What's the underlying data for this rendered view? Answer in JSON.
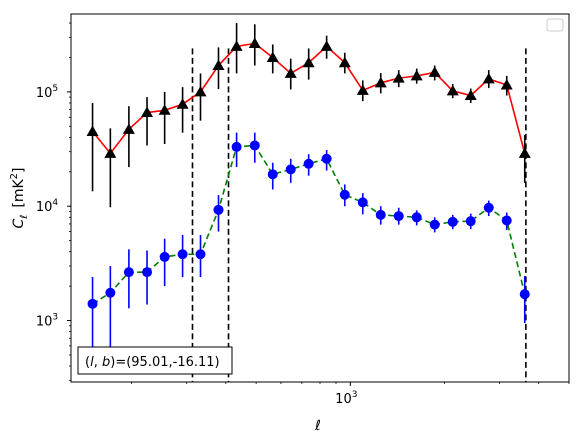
{
  "chart_data": {
    "type": "line",
    "xlabel": "ℓ",
    "ylabel_main": "C",
    "ylabel_sub": "ℓ",
    "ylabel_unit": "[mK",
    "ylabel_unit_sup": "2",
    "ylabel_unit_close": "]",
    "xscale": "log",
    "yscale": "log",
    "xlim": [
      128,
      5000
    ],
    "ylim": [
      290,
      480000
    ],
    "x_tick_labels": [
      {
        "value": 1000,
        "base": "10",
        "exp": "3"
      }
    ],
    "y_tick_labels": [
      {
        "value": 1000,
        "base": "10",
        "exp": "3"
      },
      {
        "value": 10000,
        "base": "10",
        "exp": "4"
      },
      {
        "value": 100000,
        "base": "10",
        "exp": "5"
      }
    ],
    "annotation": "(l, b)=(95.01,-16.11)",
    "annotation_parts": {
      "open": "(",
      "l": "l",
      "sep": ", ",
      "b": "b",
      "close": ")",
      "eq": "=(95.01,-16.11)"
    },
    "legend": "top-right (empty)",
    "vlines": [
      313,
      408,
      3640
    ],
    "series": [
      {
        "color": "#ff0000",
        "line_style": "solid",
        "marker": "triangle",
        "marker_color": "#000000",
        "errorbar_color": "#000000",
        "points": [
          {
            "x": 150,
            "y": 45000,
            "lo": 13500,
            "hi": 80000
          },
          {
            "x": 171,
            "y": 29000,
            "lo": 9800,
            "hi": 48000
          },
          {
            "x": 196,
            "y": 47000,
            "lo": 22000,
            "hi": 75000
          },
          {
            "x": 224,
            "y": 66000,
            "lo": 34000,
            "hi": 90000
          },
          {
            "x": 255,
            "y": 69000,
            "lo": 35000,
            "hi": 100000
          },
          {
            "x": 291,
            "y": 78000,
            "lo": 44000,
            "hi": 110000
          },
          {
            "x": 332,
            "y": 100000,
            "lo": 56000,
            "hi": 145000
          },
          {
            "x": 379,
            "y": 170000,
            "lo": 106000,
            "hi": 245000
          },
          {
            "x": 433,
            "y": 250000,
            "lo": 145000,
            "hi": 400000
          },
          {
            "x": 495,
            "y": 265000,
            "lo": 170000,
            "hi": 390000
          },
          {
            "x": 565,
            "y": 200000,
            "lo": 145000,
            "hi": 260000
          },
          {
            "x": 645,
            "y": 145000,
            "lo": 105000,
            "hi": 195000
          },
          {
            "x": 736,
            "y": 180000,
            "lo": 128000,
            "hi": 240000
          },
          {
            "x": 840,
            "y": 250000,
            "lo": 195000,
            "hi": 310000
          },
          {
            "x": 960,
            "y": 180000,
            "lo": 145000,
            "hi": 220000
          },
          {
            "x": 1096,
            "y": 103000,
            "lo": 83000,
            "hi": 126000
          },
          {
            "x": 1251,
            "y": 120000,
            "lo": 97000,
            "hi": 146000
          },
          {
            "x": 1428,
            "y": 132000,
            "lo": 110000,
            "hi": 155000
          },
          {
            "x": 1630,
            "y": 138000,
            "lo": 118000,
            "hi": 160000
          },
          {
            "x": 1861,
            "y": 148000,
            "lo": 126000,
            "hi": 170000
          },
          {
            "x": 2125,
            "y": 102000,
            "lo": 88000,
            "hi": 117000
          },
          {
            "x": 2426,
            "y": 93000,
            "lo": 80000,
            "hi": 107000
          },
          {
            "x": 2770,
            "y": 130000,
            "lo": 108000,
            "hi": 155000
          },
          {
            "x": 3162,
            "y": 115000,
            "lo": 93000,
            "hi": 138000
          },
          {
            "x": 3610,
            "y": 29000,
            "lo": 16000,
            "hi": 42000
          }
        ]
      },
      {
        "color": "#008000",
        "line_style": "dashed",
        "marker": "circle",
        "marker_color": "#0000ff",
        "errorbar_color": "#0000ff",
        "points": [
          {
            "x": 150,
            "y": 1400,
            "lo": 500,
            "hi": 2400
          },
          {
            "x": 171,
            "y": 1750,
            "lo": 560,
            "hi": 3000
          },
          {
            "x": 196,
            "y": 2650,
            "lo": 1280,
            "hi": 4200
          },
          {
            "x": 224,
            "y": 2650,
            "lo": 1380,
            "hi": 4100
          },
          {
            "x": 255,
            "y": 3600,
            "lo": 2000,
            "hi": 5200
          },
          {
            "x": 291,
            "y": 3800,
            "lo": 2400,
            "hi": 5600
          },
          {
            "x": 332,
            "y": 3800,
            "lo": 2400,
            "hi": 5600
          },
          {
            "x": 379,
            "y": 9300,
            "lo": 6000,
            "hi": 12500
          },
          {
            "x": 433,
            "y": 33000,
            "lo": 22000,
            "hi": 44000
          },
          {
            "x": 495,
            "y": 34000,
            "lo": 24000,
            "hi": 44000
          },
          {
            "x": 565,
            "y": 19000,
            "lo": 14000,
            "hi": 24000
          },
          {
            "x": 645,
            "y": 21000,
            "lo": 16000,
            "hi": 26000
          },
          {
            "x": 736,
            "y": 23500,
            "lo": 18500,
            "hi": 28500
          },
          {
            "x": 840,
            "y": 26000,
            "lo": 20500,
            "hi": 31000
          },
          {
            "x": 960,
            "y": 12600,
            "lo": 10000,
            "hi": 15500
          },
          {
            "x": 1096,
            "y": 10800,
            "lo": 8500,
            "hi": 13000
          },
          {
            "x": 1251,
            "y": 8400,
            "lo": 6900,
            "hi": 10000
          },
          {
            "x": 1428,
            "y": 8200,
            "lo": 6900,
            "hi": 9700
          },
          {
            "x": 1630,
            "y": 8000,
            "lo": 6800,
            "hi": 9200
          },
          {
            "x": 1861,
            "y": 6900,
            "lo": 5900,
            "hi": 8000
          },
          {
            "x": 2125,
            "y": 7300,
            "lo": 6300,
            "hi": 8400
          },
          {
            "x": 2426,
            "y": 7400,
            "lo": 6300,
            "hi": 8600
          },
          {
            "x": 2770,
            "y": 9700,
            "lo": 8200,
            "hi": 11200
          },
          {
            "x": 3162,
            "y": 7500,
            "lo": 6200,
            "hi": 8800
          },
          {
            "x": 3610,
            "y": 1700,
            "lo": 950,
            "hi": 2450
          }
        ]
      }
    ]
  }
}
